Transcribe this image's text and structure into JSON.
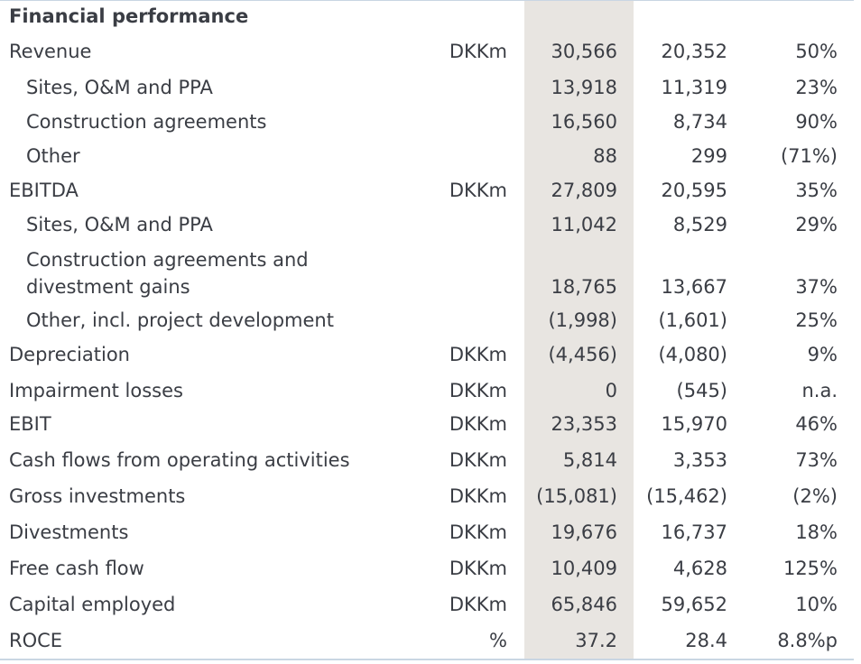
{
  "title": "Financial performance",
  "rows": [
    {
      "label": "Revenue",
      "unit": "DKKm",
      "v1": "30,566",
      "v2": "20,352",
      "change": "50%"
    },
    {
      "label": "Sites, O&M and PPA",
      "unit": "",
      "v1": "13,918",
      "v2": "11,319",
      "change": "23%"
    },
    {
      "label": "Construction agreements",
      "unit": "",
      "v1": "16,560",
      "v2": "8,734",
      "change": "90%"
    },
    {
      "label": "Other",
      "unit": "",
      "v1": "88",
      "v2": "299",
      "change": "(71%)"
    },
    {
      "label": "EBITDA",
      "unit": "DKKm",
      "v1": "27,809",
      "v2": "20,595",
      "change": "35%"
    },
    {
      "label": "Sites, O&M and PPA",
      "unit": "",
      "v1": "11,042",
      "v2": "8,529",
      "change": "29%"
    },
    {
      "label_line1": "Construction agreements and",
      "label_line2": "divestment gains",
      "unit": "",
      "v1": "18,765",
      "v2": "13,667",
      "change": "37%"
    },
    {
      "label": "Other, incl. project development",
      "unit": "",
      "v1": "(1,998)",
      "v2": "(1,601)",
      "change": "25%"
    },
    {
      "label": "Depreciation",
      "unit": "DKKm",
      "v1": "(4,456)",
      "v2": "(4,080)",
      "change": "9%"
    },
    {
      "label": "Impairment losses",
      "unit": "DKKm",
      "v1": "0",
      "v2": "(545)",
      "change": "n.a."
    },
    {
      "label": "EBIT",
      "unit": "DKKm",
      "v1": "23,353",
      "v2": "15,970",
      "change": "46%"
    },
    {
      "label": "Cash flows from operating activities",
      "unit": "DKKm",
      "v1": "5,814",
      "v2": "3,353",
      "change": "73%"
    },
    {
      "label": "Gross investments",
      "unit": "DKKm",
      "v1": "(15,081)",
      "v2": "(15,462)",
      "change": "(2%)"
    },
    {
      "label": "Divestments",
      "unit": "DKKm",
      "v1": "19,676",
      "v2": "16,737",
      "change": "18%"
    },
    {
      "label": "Free cash flow",
      "unit": "DKKm",
      "v1": "10,409",
      "v2": "4,628",
      "change": "125%"
    },
    {
      "label": "Capital employed",
      "unit": "DKKm",
      "v1": "65,846",
      "v2": "59,652",
      "change": "10%"
    },
    {
      "label": "ROCE",
      "unit": "%",
      "v1": "37.2",
      "v2": "28.4",
      "change": "8.8%p"
    }
  ]
}
